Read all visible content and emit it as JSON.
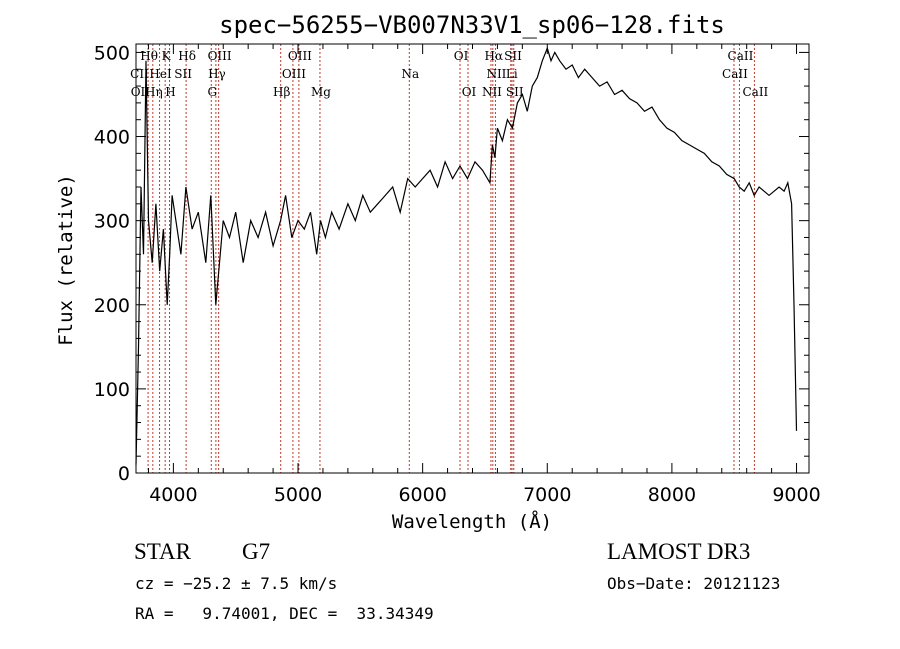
{
  "chart_data": {
    "type": "line",
    "title": "spec−56255−VB007N33V1_sp06−128.fits",
    "xlabel": "Wavelength (Å)",
    "ylabel": "Flux (relative)",
    "xlim": [
      3700,
      9100
    ],
    "ylim": [
      0,
      510
    ],
    "xticks": [
      4000,
      5000,
      6000,
      7000,
      8000,
      9000
    ],
    "yticks": [
      0,
      100,
      200,
      300,
      400,
      500
    ],
    "grid": false,
    "series": [
      {
        "name": "spectrum",
        "x": [
          3700,
          3720,
          3740,
          3760,
          3780,
          3800,
          3830,
          3860,
          3890,
          3920,
          3950,
          3970,
          3990,
          4020,
          4060,
          4100,
          4150,
          4200,
          4260,
          4300,
          4340,
          4400,
          4450,
          4500,
          4560,
          4620,
          4680,
          4740,
          4800,
          4860,
          4900,
          4950,
          5000,
          5050,
          5100,
          5150,
          5180,
          5220,
          5270,
          5330,
          5400,
          5460,
          5520,
          5580,
          5640,
          5700,
          5760,
          5820,
          5880,
          5940,
          6000,
          6060,
          6120,
          6180,
          6240,
          6300,
          6360,
          6420,
          6480,
          6540,
          6560,
          6580,
          6600,
          6640,
          6680,
          6720,
          6760,
          6800,
          6840,
          6880,
          6920,
          6960,
          7000,
          7030,
          7060,
          7100,
          7150,
          7200,
          7250,
          7300,
          7360,
          7420,
          7480,
          7540,
          7600,
          7660,
          7720,
          7780,
          7840,
          7900,
          7960,
          8020,
          8080,
          8140,
          8200,
          8260,
          8320,
          8380,
          8440,
          8500,
          8540,
          8580,
          8620,
          8660,
          8700,
          8740,
          8780,
          8820,
          8860,
          8900,
          8930,
          8960,
          8980,
          9000
        ],
        "y": [
          10,
          150,
          340,
          260,
          490,
          300,
          250,
          320,
          240,
          290,
          200,
          260,
          330,
          300,
          260,
          340,
          290,
          310,
          250,
          330,
          200,
          300,
          280,
          310,
          250,
          300,
          280,
          310,
          270,
          300,
          330,
          280,
          300,
          290,
          310,
          260,
          300,
          280,
          310,
          290,
          320,
          300,
          330,
          310,
          320,
          330,
          340,
          310,
          350,
          340,
          350,
          360,
          340,
          370,
          350,
          365,
          350,
          370,
          360,
          345,
          390,
          375,
          410,
          395,
          420,
          410,
          440,
          450,
          430,
          460,
          470,
          490,
          505,
          490,
          500,
          490,
          480,
          485,
          470,
          480,
          470,
          460,
          465,
          450,
          455,
          445,
          440,
          430,
          435,
          420,
          410,
          405,
          395,
          390,
          385,
          380,
          370,
          365,
          355,
          350,
          340,
          335,
          345,
          330,
          340,
          335,
          330,
          335,
          340,
          335,
          345,
          320,
          200,
          50
        ]
      }
    ],
    "lines_x": [
      3797,
      3835,
      3889,
      3934,
      3969,
      4102,
      4304,
      4341,
      4363,
      4861,
      4959,
      5007,
      5176,
      5893,
      6300,
      6364,
      6548,
      6563,
      6584,
      6707,
      6717,
      6731,
      8498,
      8542,
      8662
    ],
    "line_labels": [
      {
        "text": "Hθ",
        "x": 3797,
        "row": 0
      },
      {
        "text": "K",
        "x": 3934,
        "row": 0
      },
      {
        "text": "Hδ",
        "x": 4102,
        "row": 0
      },
      {
        "text": "OIII",
        "x": 4363,
        "row": 0
      },
      {
        "text": "OIII",
        "x": 5007,
        "row": 0
      },
      {
        "text": "OI",
        "x": 6300,
        "row": 0
      },
      {
        "text": "Hα",
        "x": 6563,
        "row": 0
      },
      {
        "text": "SII",
        "x": 6717,
        "row": 0
      },
      {
        "text": "CaII",
        "x": 8542,
        "row": 0
      },
      {
        "text": "CII",
        "x": 3720,
        "row": 1
      },
      {
        "text": "HeI",
        "x": 3889,
        "row": 1
      },
      {
        "text": "SII",
        "x": 4070,
        "row": 1
      },
      {
        "text": "Hγ",
        "x": 4341,
        "row": 1
      },
      {
        "text": "OIII",
        "x": 4959,
        "row": 1
      },
      {
        "text": "Na",
        "x": 5893,
        "row": 1
      },
      {
        "text": "NII",
        "x": 6584,
        "row": 1
      },
      {
        "text": "Li",
        "x": 6707,
        "row": 1
      },
      {
        "text": "CaII",
        "x": 8498,
        "row": 1
      },
      {
        "text": "OII",
        "x": 3727,
        "row": 2
      },
      {
        "text": "Hη",
        "x": 3835,
        "row": 2
      },
      {
        "text": "H",
        "x": 3969,
        "row": 2
      },
      {
        "text": "G",
        "x": 4304,
        "row": 2
      },
      {
        "text": "Hβ",
        "x": 4861,
        "row": 2
      },
      {
        "text": "Mg",
        "x": 5176,
        "row": 2
      },
      {
        "text": "OI",
        "x": 6364,
        "row": 2
      },
      {
        "text": "NII",
        "x": 6548,
        "row": 2
      },
      {
        "text": "SII",
        "x": 6731,
        "row": 2
      },
      {
        "text": "CaII",
        "x": 8662,
        "row": 2
      }
    ]
  },
  "info": {
    "object_class": "STAR",
    "subclass": "G7",
    "survey": "LAMOST DR3",
    "cz": "cz = −25.2 ± 7.5 km/s",
    "obs_date": "Obs−Date: 20121123",
    "radec": "RA =   9.74001, DEC =  33.34349"
  }
}
